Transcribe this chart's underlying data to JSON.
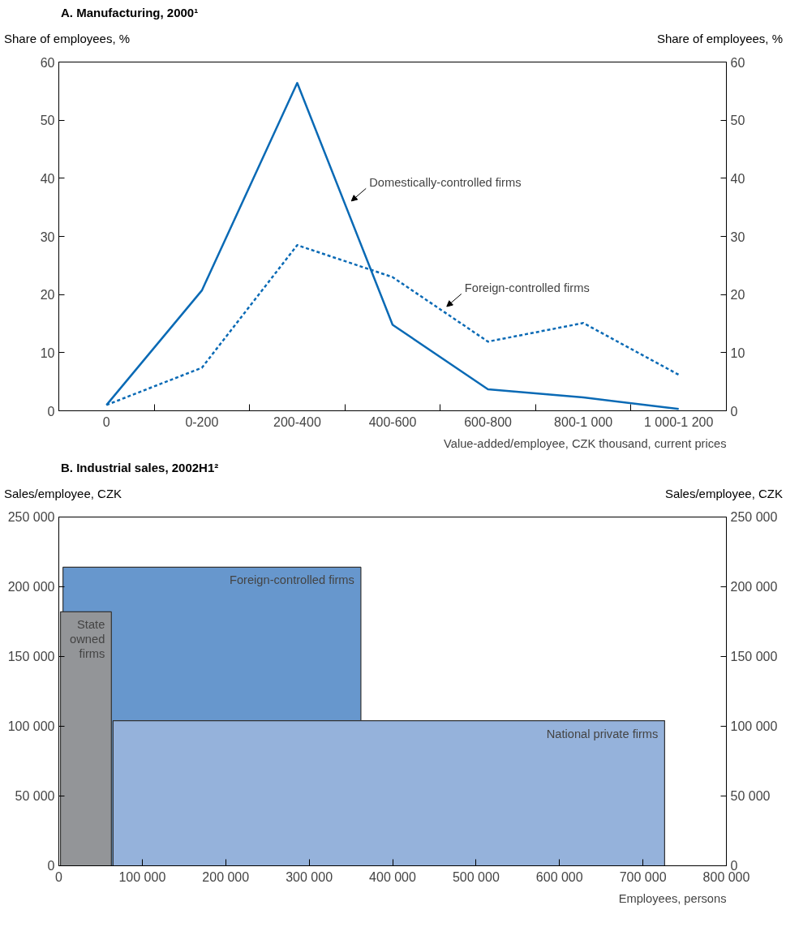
{
  "chart_data": [
    {
      "type": "line",
      "title": "A. Manufacturing, 2000¹",
      "ylabel": "Share of employees, %",
      "y2label": "Share of employees, %",
      "xlabel": "Value-added/employee, CZK thousand, current prices",
      "categories": [
        "0",
        "0-200",
        "200-400",
        "400-600",
        "600-800",
        "800-1 000",
        "1 000-1 200"
      ],
      "series": [
        {
          "name": "Domestically-controlled firms",
          "color": "#0a6ab5",
          "line_style": "solid",
          "values": [
            1.0,
            20.7,
            56.4,
            14.8,
            3.7,
            2.3,
            0.3
          ]
        },
        {
          "name": "Foreign-controlled firms",
          "color": "#0a6ab5",
          "line_style": "dashed",
          "values": [
            1.0,
            7.4,
            28.5,
            23.0,
            11.9,
            15.1,
            6.2
          ]
        }
      ],
      "ylim": [
        0,
        60
      ],
      "yticks": [
        0,
        10,
        20,
        30,
        40,
        50,
        60
      ],
      "y2lim": [
        0,
        60
      ],
      "y2ticks": [
        0,
        10,
        20,
        30,
        40,
        50,
        60
      ],
      "grid": false,
      "marker": "none"
    },
    {
      "type": "area",
      "title": "B. Industrial sales, 2002H1²",
      "ylabel": "Sales/employee, CZK",
      "y2label": "Sales/employee, CZK",
      "xlabel": "Employees, persons",
      "series": [
        {
          "name": "Foreign-controlled firms",
          "color": "#6797cd",
          "x": [
            5000,
            362000
          ],
          "values": [
            214000,
            214000
          ]
        },
        {
          "name": "National private firms",
          "color": "#95b2db",
          "x": [
            65000,
            726000
          ],
          "values": [
            104000,
            104000
          ]
        },
        {
          "name": "State owned firms",
          "color": "#939598",
          "x": [
            2000,
            63000
          ],
          "values": [
            182000,
            182000
          ]
        }
      ],
      "xlim": [
        0,
        800000
      ],
      "xticks": [
        0,
        {
          "value": 100000,
          "label": "100 000"
        },
        {
          "value": 200000,
          "label": "200 000"
        },
        {
          "value": 300000,
          "label": "300 000"
        },
        {
          "value": 400000,
          "label": "400 000"
        },
        {
          "value": 500000,
          "label": "500 000"
        },
        {
          "value": 600000,
          "label": "600 000"
        },
        {
          "value": 700000,
          "label": "700 000"
        },
        {
          "value": 800000,
          "label": "800 000"
        }
      ],
      "ylim": [
        0,
        250000
      ],
      "yticks": [
        0,
        {
          "value": 50000,
          "label": "50 000"
        },
        {
          "value": 100000,
          "label": "100 000"
        },
        {
          "value": 150000,
          "label": "150 000"
        },
        {
          "value": 200000,
          "label": "200 000"
        },
        {
          "value": 250000,
          "label": "250 000"
        }
      ],
      "y2lim": [
        0,
        250000
      ],
      "y2ticks": [
        0,
        {
          "value": 50000,
          "label": "50 000"
        },
        {
          "value": 100000,
          "label": "100 000"
        },
        {
          "value": 150000,
          "label": "150 000"
        },
        {
          "value": 200000,
          "label": "200 000"
        },
        {
          "value": 250000,
          "label": "250 000"
        }
      ],
      "grid": false
    }
  ]
}
